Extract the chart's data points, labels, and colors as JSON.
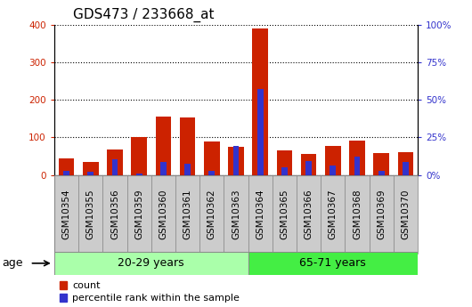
{
  "title": "GDS473 / 233668_at",
  "samples": [
    "GSM10354",
    "GSM10355",
    "GSM10356",
    "GSM10359",
    "GSM10360",
    "GSM10361",
    "GSM10362",
    "GSM10363",
    "GSM10364",
    "GSM10365",
    "GSM10366",
    "GSM10367",
    "GSM10368",
    "GSM10369",
    "GSM10370"
  ],
  "counts": [
    45,
    35,
    68,
    102,
    155,
    152,
    88,
    75,
    390,
    65,
    55,
    78,
    92,
    58,
    60
  ],
  "percentile_pct": [
    2.5,
    2,
    10.5,
    1.2,
    8.5,
    7.5,
    3,
    19.5,
    57,
    5,
    9,
    6.5,
    12.5,
    3,
    8.5
  ],
  "count_color": "#cc2200",
  "percentile_color": "#3333cc",
  "ylim_left": [
    0,
    400
  ],
  "ylim_right": [
    0,
    100
  ],
  "yticks_left": [
    0,
    100,
    200,
    300,
    400
  ],
  "yticks_right": [
    0,
    25,
    50,
    75,
    100
  ],
  "group1_label": "20-29 years",
  "group1_count": 8,
  "group2_label": "65-71 years",
  "group2_count": 7,
  "age_label": "age",
  "legend_count": "count",
  "legend_pct": "percentile rank within the sample",
  "bar_width": 0.65,
  "group1_color": "#aaffaa",
  "group2_color": "#44ee44",
  "cell_bg_color": "#cccccc",
  "cell_border_color": "#888888",
  "title_fontsize": 11,
  "tick_fontsize": 7.5
}
